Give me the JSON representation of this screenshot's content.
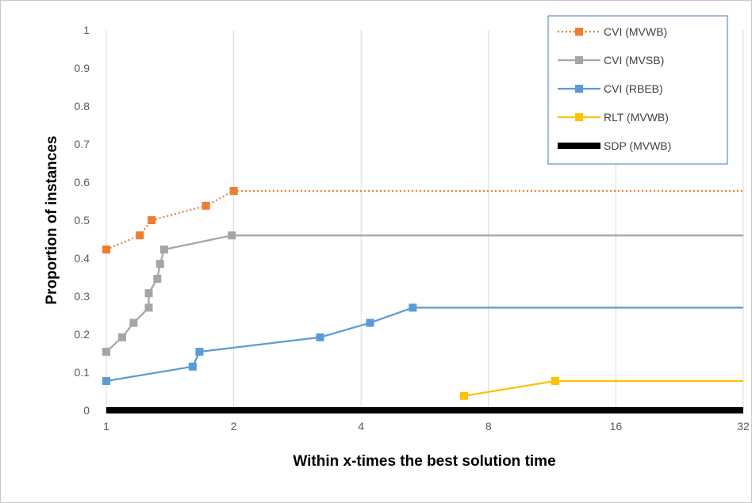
{
  "chart_data": {
    "type": "line",
    "xlabel": "Within x-times the best solution time",
    "ylabel": "Proportion of instances",
    "x_scale": "log2",
    "xlim": [
      1,
      32
    ],
    "ylim": [
      0,
      1
    ],
    "x_ticks": [
      "1",
      "2",
      "4",
      "8",
      "16",
      "32"
    ],
    "y_ticks": [
      "0",
      "0.1",
      "0.2",
      "0.3",
      "0.4",
      "0.5",
      "0.6",
      "0.7",
      "0.8",
      "0.9",
      "1"
    ],
    "grid": "vertical",
    "legend_position": "top-right",
    "series": [
      {
        "name": "CVI (MVWB)",
        "color": "#ed7d31",
        "style": "dotted",
        "marker": "square",
        "points": [
          [
            1.0,
            0.423
          ],
          [
            1.2,
            0.46
          ],
          [
            1.28,
            0.5
          ],
          [
            1.72,
            0.538
          ],
          [
            2.0,
            0.577
          ]
        ],
        "extends_to": 32
      },
      {
        "name": "CVI (MVSB)",
        "color": "#a5a5a5",
        "style": "solid",
        "marker": "square",
        "points": [
          [
            1.0,
            0.154
          ],
          [
            1.09,
            0.192
          ],
          [
            1.16,
            0.23
          ],
          [
            1.26,
            0.27
          ],
          [
            1.26,
            0.308
          ],
          [
            1.32,
            0.346
          ],
          [
            1.34,
            0.385
          ],
          [
            1.37,
            0.423
          ],
          [
            1.98,
            0.46
          ]
        ],
        "extends_to": 32
      },
      {
        "name": "CVI (RBEB)",
        "color": "#5b9bd5",
        "style": "solid",
        "marker": "square",
        "points": [
          [
            1.0,
            0.077
          ],
          [
            1.6,
            0.115
          ],
          [
            1.66,
            0.154
          ],
          [
            3.2,
            0.192
          ],
          [
            4.2,
            0.23
          ],
          [
            5.3,
            0.27
          ]
        ],
        "extends_to": 32
      },
      {
        "name": "RLT (MVWB)",
        "color": "#ffc000",
        "style": "solid",
        "marker": "square",
        "points": [
          [
            7.0,
            0.038
          ],
          [
            11.5,
            0.077
          ]
        ],
        "extends_to": 32
      },
      {
        "name": "SDP (MVWB)",
        "color": "#000000",
        "style": "thick",
        "marker": "none",
        "points": [
          [
            1.0,
            0.0
          ],
          [
            32.0,
            0.0
          ]
        ]
      }
    ]
  }
}
